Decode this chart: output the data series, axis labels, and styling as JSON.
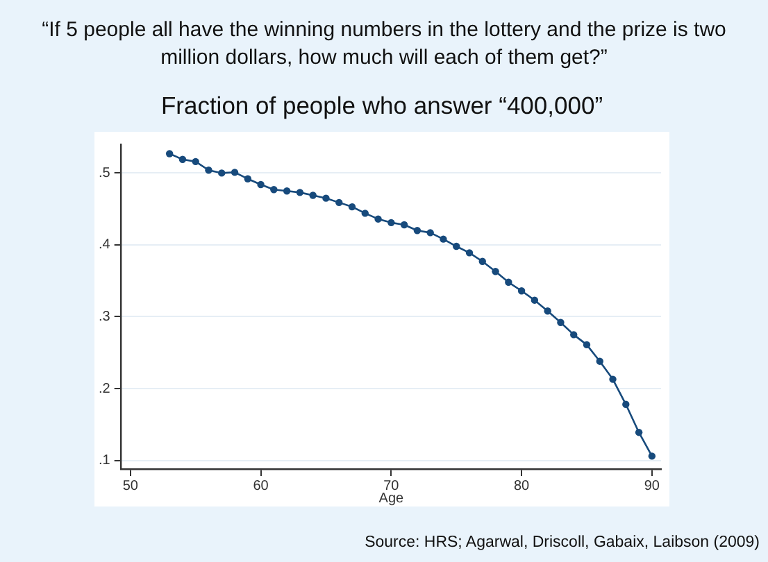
{
  "chart_data": {
    "type": "line",
    "title": "“If 5 people all have the winning numbers in the lottery and the prize is two million dollars, how much will each of them get?”",
    "subtitle": "Fraction of people who answer “400,000”",
    "xlabel": "Age",
    "x": [
      53,
      54,
      55,
      56,
      57,
      58,
      59,
      60,
      61,
      62,
      63,
      64,
      65,
      66,
      67,
      68,
      69,
      70,
      71,
      72,
      73,
      74,
      75,
      76,
      77,
      78,
      79,
      80,
      81,
      82,
      83,
      84,
      85,
      86,
      87,
      88,
      89,
      90
    ],
    "values": [
      0.527,
      0.519,
      0.516,
      0.504,
      0.5,
      0.501,
      0.492,
      0.484,
      0.477,
      0.475,
      0.473,
      0.469,
      0.465,
      0.459,
      0.453,
      0.444,
      0.436,
      0.431,
      0.428,
      0.42,
      0.417,
      0.408,
      0.398,
      0.389,
      0.377,
      0.363,
      0.348,
      0.336,
      0.323,
      0.308,
      0.292,
      0.275,
      0.261,
      0.238,
      0.213,
      0.178,
      0.139,
      0.106
    ],
    "color": "#174a7c",
    "xlim": [
      49.3,
      90.7
    ],
    "xticks": [
      50,
      60,
      70,
      80,
      90
    ],
    "ylim": [
      0.088,
      0.54
    ],
    "yticks": [
      {
        "value": 0.1,
        "label": ".1"
      },
      {
        "value": 0.2,
        "label": ".2"
      },
      {
        "value": 0.3,
        "label": ".3"
      },
      {
        "value": 0.4,
        "label": ".4"
      },
      {
        "value": 0.5,
        "label": ".5"
      }
    ],
    "grid": "y",
    "marker": "circle",
    "line_style": "solid",
    "annotations": [
      "Source: HRS; Agarwal, Driscoll, Gabaix, Laibson (2009)"
    ]
  }
}
